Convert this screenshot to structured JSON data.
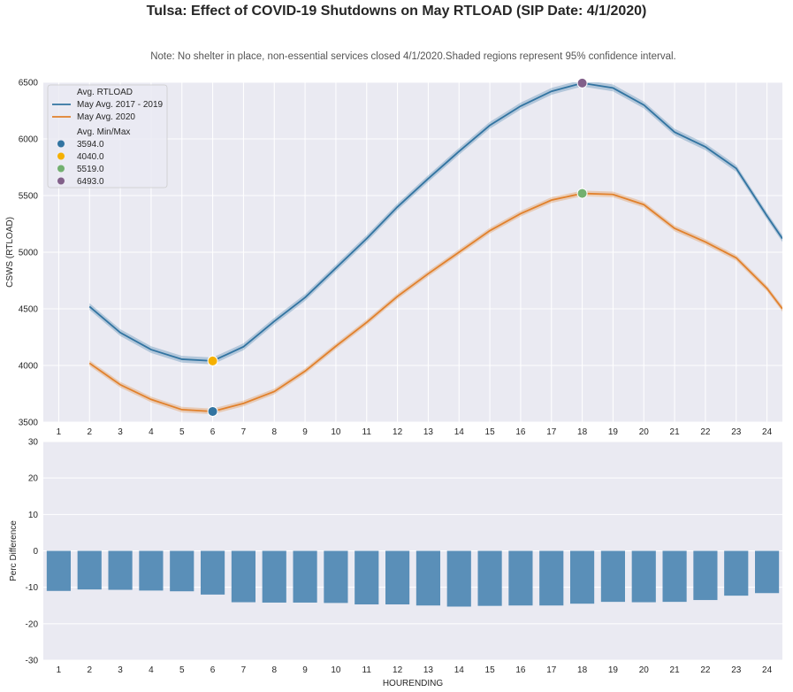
{
  "chart_data": [
    {
      "type": "line",
      "title": "Tulsa: Effect of COVID-19 Shutdowns on May RTLOAD (SIP Date: 4/1/2020)",
      "subtitle": "Note: No shelter in place, non-essential services closed 4/1/2020.Shaded regions represent 95% confidence interval.",
      "xlabel": "",
      "ylabel": "CSWS (RTLOAD)",
      "ylim": [
        3500,
        6500
      ],
      "xlim": [
        0.5,
        24.5
      ],
      "xticks": [
        "1",
        "2",
        "3",
        "4",
        "5",
        "6",
        "7",
        "8",
        "9",
        "10",
        "11",
        "12",
        "13",
        "14",
        "15",
        "16",
        "17",
        "18",
        "19",
        "20",
        "21",
        "22",
        "23",
        "24"
      ],
      "yticks": [
        "3500",
        "4000",
        "4500",
        "5000",
        "5500",
        "6000",
        "6500"
      ],
      "legend_position": "upper-left",
      "legend_title": "Avg. RTLOAD",
      "series": [
        {
          "name": "May Avg. 2017 - 2019",
          "color": "#3274a1",
          "x": [
            2,
            3,
            4,
            5,
            6,
            7,
            8,
            9,
            10,
            11,
            12,
            13,
            14,
            15,
            16,
            17,
            18,
            19,
            20,
            21,
            22,
            23,
            24,
            24.5
          ],
          "values": [
            4520,
            4290,
            4140,
            4055,
            4040,
            4165,
            4390,
            4600,
            4860,
            5120,
            5400,
            5650,
            5890,
            6120,
            6290,
            6420,
            6493,
            6450,
            6300,
            6060,
            5930,
            5740,
            5320,
            5120
          ],
          "ci": 30
        },
        {
          "name": "May Avg. 2020",
          "color": "#e1812c",
          "x": [
            2,
            3,
            4,
            5,
            6,
            7,
            8,
            9,
            10,
            11,
            12,
            13,
            14,
            15,
            16,
            17,
            18,
            19,
            20,
            21,
            22,
            23,
            24,
            24.5
          ],
          "values": [
            4020,
            3830,
            3700,
            3610,
            3594,
            3665,
            3770,
            3950,
            4170,
            4380,
            4610,
            4810,
            5000,
            5190,
            5340,
            5460,
            5519,
            5510,
            5420,
            5210,
            5090,
            4950,
            4680,
            4500
          ],
          "ci": 25
        }
      ],
      "markers_title": "Avg. Min/Max",
      "markers": [
        {
          "label": "3594.0",
          "x": 6,
          "y": 3594,
          "color": "#3274a1"
        },
        {
          "label": "4040.0",
          "x": 6,
          "y": 4040,
          "color": "#f5b000"
        },
        {
          "label": "5519.0",
          "x": 18,
          "y": 5519,
          "color": "#72b06f"
        },
        {
          "label": "6493.0",
          "x": 18,
          "y": 6493,
          "color": "#82608a"
        }
      ]
    },
    {
      "type": "bar",
      "xlabel": "HOURENDING",
      "ylabel": "Perc Difference",
      "ylim": [
        -30,
        30
      ],
      "yticks": [
        "-30",
        "-20",
        "-10",
        "0",
        "10",
        "20",
        "30"
      ],
      "categories": [
        "1",
        "2",
        "3",
        "4",
        "5",
        "6",
        "7",
        "8",
        "9",
        "10",
        "11",
        "12",
        "13",
        "14",
        "15",
        "16",
        "17",
        "18",
        "19",
        "20",
        "21",
        "22",
        "23",
        "24"
      ],
      "values": [
        -11.0,
        -10.6,
        -10.7,
        -10.9,
        -11.1,
        -12.0,
        -14.1,
        -14.2,
        -14.2,
        -14.3,
        -14.7,
        -14.7,
        -15.0,
        -15.3,
        -15.1,
        -15.0,
        -15.0,
        -14.5,
        -14.0,
        -14.1,
        -14.0,
        -13.5,
        -12.3,
        -11.6
      ],
      "color": "#5a8fb8"
    }
  ]
}
